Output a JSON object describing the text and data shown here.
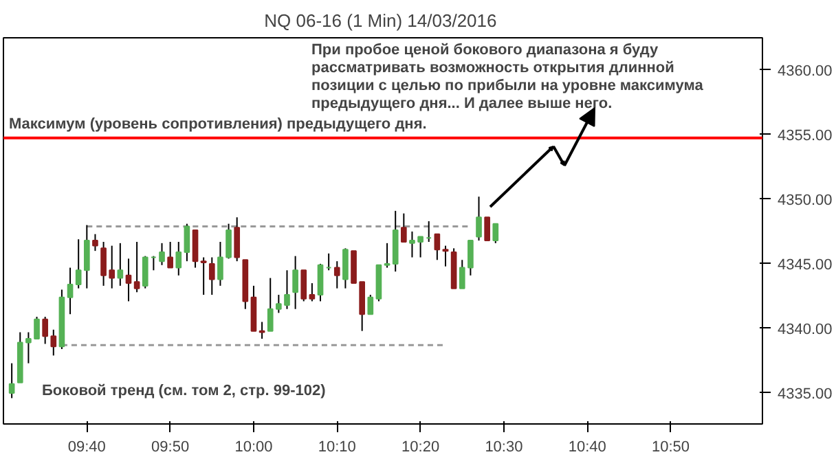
{
  "chart_data": {
    "type": "candlestick",
    "title": "NQ 06-16 (1 Min)  14/03/2016",
    "x": [
      "2016-03-14T09:31",
      "2016-03-14T09:32",
      "2016-03-14T09:33",
      "2016-03-14T09:34",
      "2016-03-14T09:35",
      "2016-03-14T09:36",
      "2016-03-14T09:37",
      "2016-03-14T09:38",
      "2016-03-14T09:39",
      "2016-03-14T09:40",
      "2016-03-14T09:41",
      "2016-03-14T09:42",
      "2016-03-14T09:43",
      "2016-03-14T09:44",
      "2016-03-14T09:45",
      "2016-03-14T09:46",
      "2016-03-14T09:47",
      "2016-03-14T09:48",
      "2016-03-14T09:49",
      "2016-03-14T09:50",
      "2016-03-14T09:51",
      "2016-03-14T09:52",
      "2016-03-14T09:53",
      "2016-03-14T09:54",
      "2016-03-14T09:55",
      "2016-03-14T09:56",
      "2016-03-14T09:57",
      "2016-03-14T09:58",
      "2016-03-14T09:59",
      "2016-03-14T10:00",
      "2016-03-14T10:01",
      "2016-03-14T10:02",
      "2016-03-14T10:03",
      "2016-03-14T10:04",
      "2016-03-14T10:05",
      "2016-03-14T10:06",
      "2016-03-14T10:07",
      "2016-03-14T10:08",
      "2016-03-14T10:09",
      "2016-03-14T10:10",
      "2016-03-14T10:11",
      "2016-03-14T10:12",
      "2016-03-14T10:13",
      "2016-03-14T10:14",
      "2016-03-14T10:15",
      "2016-03-14T10:16",
      "2016-03-14T10:17",
      "2016-03-14T10:18",
      "2016-03-14T10:19",
      "2016-03-14T10:20",
      "2016-03-14T10:21",
      "2016-03-14T10:22",
      "2016-03-14T10:23",
      "2016-03-14T10:24",
      "2016-03-14T10:25",
      "2016-03-14T10:26",
      "2016-03-14T10:27",
      "2016-03-14T10:28",
      "2016-03-14T10:29"
    ],
    "ohlc": [
      [
        4335.0,
        4337.3,
        4334.6,
        4335.7
      ],
      [
        4335.8,
        4339.7,
        4335.8,
        4338.9
      ],
      [
        4338.9,
        4339.7,
        4337.3,
        4339.2
      ],
      [
        4339.2,
        4340.9,
        4339.2,
        4340.7
      ],
      [
        4340.7,
        4340.9,
        4338.8,
        4339.4
      ],
      [
        4339.4,
        4339.9,
        4337.9,
        4338.6
      ],
      [
        4338.6,
        4343.0,
        4338.4,
        4342.4
      ],
      [
        4342.4,
        4344.7,
        4341.1,
        4343.4
      ],
      [
        4343.4,
        4346.9,
        4343.1,
        4344.5
      ],
      [
        4344.5,
        4348.0,
        4343.1,
        4346.8
      ],
      [
        4346.8,
        4347.3,
        4346.0,
        4346.4
      ],
      [
        4346.2,
        4346.7,
        4343.3,
        4344.1
      ],
      [
        4344.5,
        4346.4,
        4343.1,
        4343.9
      ],
      [
        4343.9,
        4346.6,
        4343.3,
        4344.5
      ],
      [
        4344.1,
        4345.4,
        4342.1,
        4343.5
      ],
      [
        4343.6,
        4346.7,
        4342.8,
        4343.1
      ],
      [
        4343.3,
        4345.6,
        4343.1,
        4345.5
      ],
      [
        4345.5,
        4345.6,
        4344.5,
        4345.5
      ],
      [
        4345.2,
        4346.6,
        4344.9,
        4345.9
      ],
      [
        4345.5,
        4346.7,
        4344.7,
        4344.7
      ],
      [
        4344.7,
        4346.7,
        4344.1,
        4345.9
      ],
      [
        4345.9,
        4348.1,
        4345.2,
        4347.9
      ],
      [
        4347.6,
        4347.6,
        4344.7,
        4345.2
      ],
      [
        4345.2,
        4345.5,
        4342.6,
        4345.1
      ],
      [
        4345.0,
        4345.5,
        4342.6,
        4343.8
      ],
      [
        4343.8,
        4346.7,
        4343.3,
        4345.5
      ],
      [
        4345.5,
        4348.1,
        4345.4,
        4347.6
      ],
      [
        4347.8,
        4348.6,
        4345.2,
        4345.5
      ],
      [
        4345.3,
        4345.3,
        4341.5,
        4342.1
      ],
      [
        4342.4,
        4343.3,
        4339.8,
        4339.8
      ],
      [
        4339.8,
        4340.5,
        4339.2,
        4339.7
      ],
      [
        4339.8,
        4343.9,
        4339.8,
        4341.5
      ],
      [
        4341.5,
        4342.6,
        4341.2,
        4341.9
      ],
      [
        4341.8,
        4344.5,
        4341.5,
        4342.6
      ],
      [
        4342.8,
        4345.6,
        4341.5,
        4344.5
      ],
      [
        4344.5,
        4344.5,
        4342.1,
        4342.3
      ],
      [
        4342.6,
        4343.5,
        4342.1,
        4342.3
      ],
      [
        4342.6,
        4345.0,
        4342.1,
        4344.9
      ],
      [
        4344.7,
        4345.8,
        4344.5,
        4344.7
      ],
      [
        4344.7,
        4345.2,
        4343.1,
        4344.1
      ],
      [
        4343.8,
        4346.2,
        4343.1,
        4346.1
      ],
      [
        4346.0,
        4346.0,
        4343.5,
        4343.5
      ],
      [
        4343.6,
        4343.6,
        4339.8,
        4341.1
      ],
      [
        4341.1,
        4342.6,
        4341.1,
        4342.4
      ],
      [
        4342.3,
        4344.9,
        4342.1,
        4344.9
      ],
      [
        4344.9,
        4346.6,
        4344.7,
        4345.0
      ],
      [
        4345.0,
        4349.1,
        4344.4,
        4347.6
      ],
      [
        4347.8,
        4348.9,
        4346.7,
        4346.7
      ],
      [
        4346.6,
        4347.5,
        4345.5,
        4346.8
      ],
      [
        4346.7,
        4347.1,
        4345.5,
        4347.1
      ],
      [
        4347.0,
        4348.3,
        4346.7,
        4347.0
      ],
      [
        4347.3,
        4347.3,
        4345.3,
        4346.1
      ],
      [
        4346.1,
        4346.4,
        4344.8,
        4346.0
      ],
      [
        4345.9,
        4346.2,
        4343.1,
        4343.1
      ],
      [
        4343.1,
        4345.3,
        4343.1,
        4344.7
      ],
      [
        4344.7,
        4346.8,
        4344.1,
        4346.8
      ],
      [
        4347.1,
        4350.2,
        4346.8,
        4348.6
      ],
      [
        4348.6,
        4348.6,
        4346.8,
        4346.8
      ],
      [
        4346.8,
        4348.1,
        4346.6,
        4348.1
      ]
    ],
    "colors": [
      "#55b255",
      "#55b255",
      "#55b255",
      "#55b255",
      "#8b1c1c",
      "#8b1c1c",
      "#55b255",
      "#55b255",
      "#55b255",
      "#55b255",
      "#8b1c1c",
      "#8b1c1c",
      "#8b1c1c",
      "#55b255",
      "#8b1c1c",
      "#8b1c1c",
      "#55b255",
      "#55b255",
      "#55b255",
      "#8b1c1c",
      "#55b255",
      "#55b255",
      "#8b1c1c",
      "#8b1c1c",
      "#8b1c1c",
      "#55b255",
      "#55b255",
      "#8b1c1c",
      "#8b1c1c",
      "#8b1c1c",
      "#8b1c1c",
      "#55b255",
      "#55b255",
      "#55b255",
      "#55b255",
      "#8b1c1c",
      "#8b1c1c",
      "#55b255",
      "#55b255",
      "#8b1c1c",
      "#55b255",
      "#8b1c1c",
      "#8b1c1c",
      "#55b255",
      "#55b255",
      "#55b255",
      "#55b255",
      "#8b1c1c",
      "#55b255",
      "#55b255",
      "#55b255",
      "#8b1c1c",
      "#8b1c1c",
      "#8b1c1c",
      "#55b255",
      "#55b255",
      "#55b255",
      "#8b1c1c",
      "#55b255"
    ],
    "series": [
      {
        "type": "line",
        "color": "#999999",
        "line_style": "dashed",
        "x": [
          "2016-03-14T09:40",
          "2016-03-14T10:26"
        ],
        "values": [
          4347.9,
          4347.9
        ]
      },
      {
        "type": "line",
        "color": "#999999",
        "line_style": "dashed",
        "x": [
          "2016-03-14T09:37",
          "2016-03-14T10:23"
        ],
        "values": [
          4338.7,
          4338.7
        ]
      }
    ],
    "ref_lines": [
      {
        "axis": "y",
        "value": 4354.75,
        "label": "Максимум (уровень сопротивления) предыдущего дня.",
        "color": "#ff0000"
      }
    ],
    "annotations": [
      "При пробое ценой бокового диапазона я буду\nрассматривать возможность открытия длинной\nпозиции с целью по прибыли на уровне максимума\nпредыдущего дня... И далее выше него.",
      "Боковой тренд (см. том 2, стр. 99-102)"
    ],
    "xlim": [
      "2016-03-14T09:30",
      "2016-03-14T11:01"
    ],
    "xticks": [
      {
        "value": "2016-03-14T09:40",
        "label": "09:40"
      },
      {
        "value": "2016-03-14T09:50",
        "label": "09:50"
      },
      {
        "value": "2016-03-14T10:00",
        "label": "10:00"
      },
      {
        "value": "2016-03-14T10:10",
        "label": "10:10"
      },
      {
        "value": "2016-03-14T10:20",
        "label": "10:20"
      },
      {
        "value": "2016-03-14T10:30",
        "label": "10:30"
      },
      {
        "value": "2016-03-14T10:40",
        "label": "10:40"
      },
      {
        "value": "2016-03-14T10:50",
        "label": "10:50"
      }
    ],
    "ylim": [
      4332.6,
      4362.5
    ],
    "yticks": [
      {
        "value": 4335,
        "label": "4335.00"
      },
      {
        "value": 4340,
        "label": "4340.00"
      },
      {
        "value": 4345,
        "label": "4345.00"
      },
      {
        "value": 4350,
        "label": "4350.00"
      },
      {
        "value": 4355,
        "label": "4355.00"
      },
      {
        "value": 4360,
        "label": "4360.00"
      }
    ]
  }
}
